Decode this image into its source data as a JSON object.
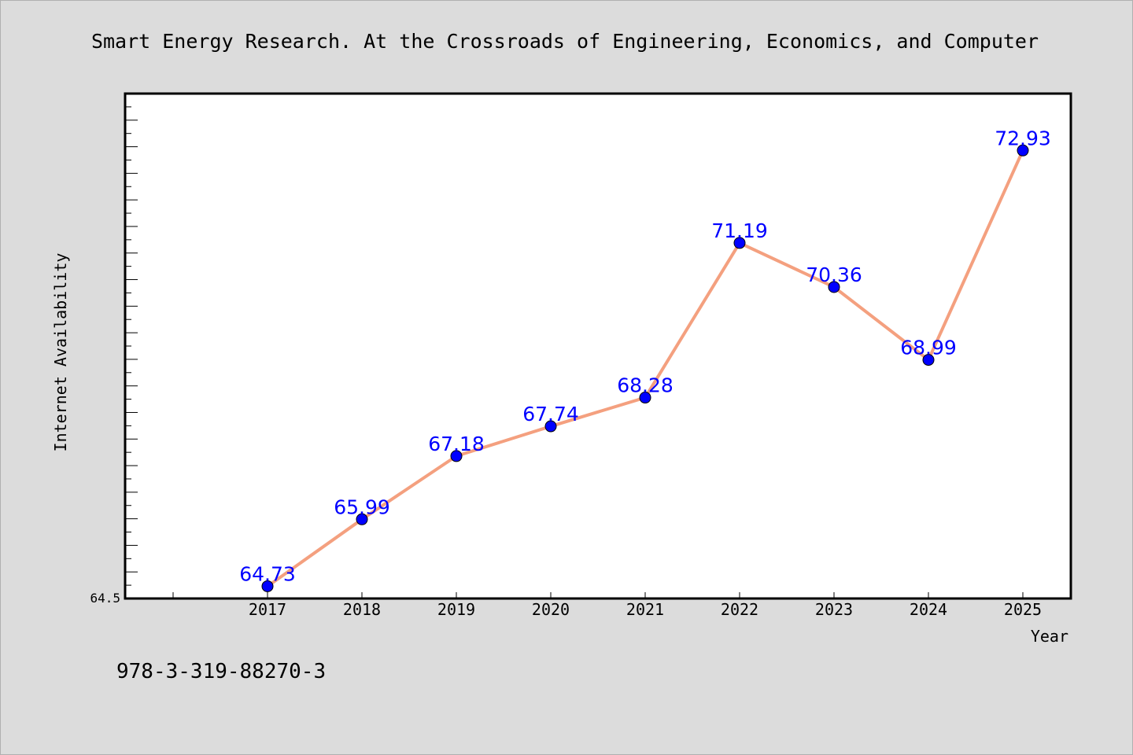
{
  "chart_data": {
    "type": "line",
    "title": "Smart Energy Research. At the Crossroads of Engineering, Economics, and Computer",
    "xlabel": "Year",
    "ylabel": "Internet Availability",
    "categories": [
      "2017",
      "2018",
      "2019",
      "2020",
      "2021",
      "2022",
      "2023",
      "2024",
      "2025"
    ],
    "series": [
      {
        "values": [
          64.73,
          65.99,
          67.18,
          67.74,
          68.28,
          71.19,
          70.36,
          68.99,
          72.93
        ],
        "data_labels": [
          "64.73",
          "65.99",
          "67.18",
          "67.74",
          "68.28",
          "71.19",
          "70.36",
          "68.99",
          "72.93"
        ]
      }
    ],
    "ytick_labels": [
      "64.5"
    ],
    "ylim": [
      64.5,
      74.0
    ],
    "grid": false,
    "line_color": "#f4a07f",
    "marker_color": "#0000ff",
    "label_color": "#0000ff"
  },
  "footer": {
    "isbn": "978-3-319-88270-3"
  }
}
